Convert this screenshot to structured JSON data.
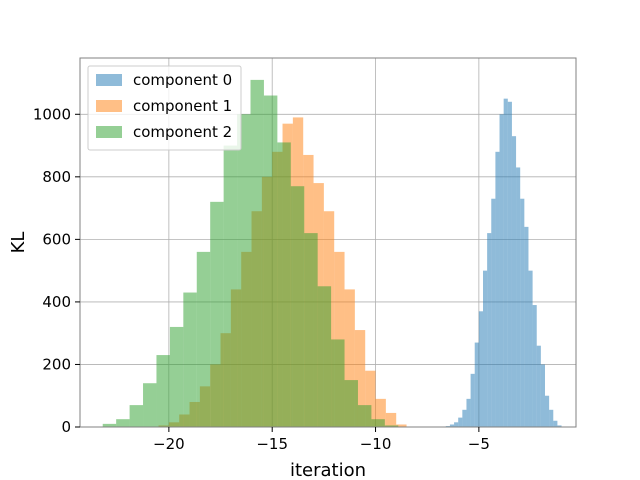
{
  "chart_data": {
    "type": "bar",
    "subtype": "histogram",
    "title": "",
    "xlabel": "iteration",
    "ylabel": "KL",
    "xlim": [
      -24.3,
      -0.3
    ],
    "ylim": [
      0,
      1180
    ],
    "xticks": [
      -20,
      -15,
      -10,
      -5
    ],
    "xtick_labels": [
      "−20",
      "−15",
      "−10",
      "−5"
    ],
    "yticks": [
      0,
      200,
      400,
      600,
      800,
      1000
    ],
    "ytick_labels": [
      "0",
      "200",
      "400",
      "600",
      "800",
      "1000"
    ],
    "grid": true,
    "legend_position": "top-left",
    "series": [
      {
        "name": "component 0",
        "color": "#1f77b4",
        "opacity": 0.5,
        "bin_edges": [
          -6.6,
          -6.4,
          -6.2,
          -6.0,
          -5.8,
          -5.6,
          -5.4,
          -5.2,
          -5.0,
          -4.8,
          -4.6,
          -4.4,
          -4.2,
          -4.0,
          -3.8,
          -3.6,
          -3.4,
          -3.2,
          -3.0,
          -2.8,
          -2.6,
          -2.4,
          -2.2,
          -2.0,
          -1.8,
          -1.6,
          -1.4,
          -1.2,
          -1.0
        ],
        "counts": [
          3,
          8,
          15,
          30,
          55,
          90,
          170,
          270,
          370,
          500,
          620,
          730,
          880,
          1000,
          1050,
          1040,
          930,
          830,
          730,
          640,
          500,
          390,
          260,
          200,
          100,
          55,
          20,
          5
        ]
      },
      {
        "name": "component 1",
        "color": "#ff7f0e",
        "opacity": 0.5,
        "bin_edges": [
          -20.5,
          -20.0,
          -19.5,
          -19.0,
          -18.5,
          -18.0,
          -17.5,
          -17.0,
          -16.5,
          -16.0,
          -15.5,
          -15.0,
          -14.5,
          -14.0,
          -13.5,
          -13.0,
          -12.5,
          -12.0,
          -11.5,
          -11.0,
          -10.5,
          -10.0,
          -9.5,
          -9.0,
          -8.5
        ],
        "counts": [
          5,
          15,
          40,
          80,
          130,
          200,
          300,
          440,
          560,
          690,
          800,
          880,
          970,
          990,
          870,
          780,
          690,
          560,
          440,
          310,
          180,
          90,
          45,
          8
        ]
      },
      {
        "name": "component 2",
        "color": "#2ca02c",
        "opacity": 0.5,
        "bin_edges": [
          -23.2,
          -22.55,
          -21.9,
          -21.25,
          -20.6,
          -19.95,
          -19.3,
          -18.65,
          -18.0,
          -17.35,
          -16.7,
          -16.05,
          -15.4,
          -14.75,
          -14.1,
          -13.45,
          -12.8,
          -12.15,
          -11.5,
          -10.85,
          -10.2,
          -9.55,
          -8.9
        ],
        "counts": [
          10,
          25,
          70,
          140,
          230,
          320,
          430,
          560,
          720,
          900,
          1000,
          1110,
          1060,
          910,
          770,
          620,
          450,
          280,
          150,
          70,
          25,
          5
        ]
      }
    ]
  }
}
